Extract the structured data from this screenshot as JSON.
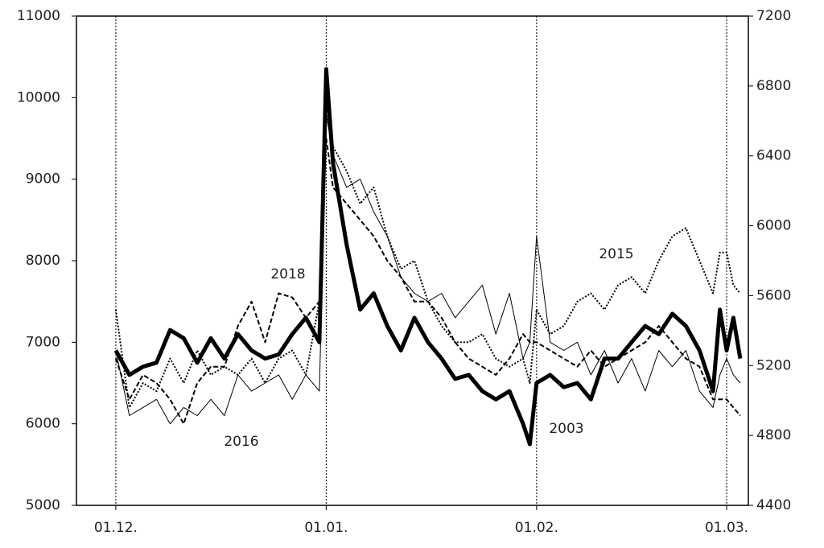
{
  "chart_data": {
    "type": "line",
    "x": [
      0,
      2,
      4,
      6,
      8,
      10,
      12,
      14,
      16,
      18,
      20,
      22,
      24,
      26,
      28,
      30,
      31,
      32,
      34,
      36,
      38,
      40,
      42,
      44,
      46,
      48,
      50,
      52,
      54,
      56,
      58,
      60,
      61,
      62,
      64,
      66,
      68,
      70,
      72,
      74,
      76,
      78,
      80,
      82,
      84,
      86,
      88,
      89,
      90,
      91,
      92
    ],
    "xlim": [
      -5.8,
      93.2
    ],
    "xticks": [
      {
        "value": 0,
        "label": "01.12."
      },
      {
        "value": 31,
        "label": "01.01."
      },
      {
        "value": 62,
        "label": "01.02."
      },
      {
        "value": 90,
        "label": "01.03."
      }
    ],
    "ylim": [
      5000,
      11000
    ],
    "yticks": [
      5000,
      6000,
      7000,
      8000,
      9000,
      10000,
      11000
    ],
    "y2lim": [
      4400,
      7200
    ],
    "y2ticks": [
      4400,
      4800,
      5200,
      5600,
      6000,
      6400,
      6800,
      7200
    ],
    "grid": "vertical-dotted",
    "series": [
      {
        "name": "2003",
        "color": "#000000",
        "style": "thick",
        "values": [
          6900,
          6600,
          6700,
          6750,
          7150,
          7050,
          6750,
          7050,
          6800,
          7100,
          6900,
          6800,
          6850,
          7100,
          7300,
          7000,
          10350,
          9200,
          8200,
          7400,
          7600,
          7200,
          6900,
          7300,
          7000,
          6800,
          6550,
          6600,
          6400,
          6300,
          6400,
          6000,
          5750,
          6500,
          6600,
          6450,
          6500,
          6300,
          6800,
          6800,
          7000,
          7200,
          7100,
          7350,
          7200,
          6900,
          6400,
          7400,
          6900,
          7300,
          6800
        ]
      },
      {
        "name": "2015",
        "color": "#000000",
        "style": "dotted-markers",
        "values": [
          7400,
          6200,
          6500,
          6400,
          6800,
          6500,
          6900,
          6600,
          6700,
          6600,
          6800,
          6500,
          6800,
          6900,
          6600,
          7500,
          9800,
          9400,
          9100,
          8700,
          8900,
          8300,
          7900,
          8000,
          7500,
          7200,
          7000,
          7000,
          7100,
          6800,
          6700,
          6800,
          6500,
          7400,
          7100,
          7200,
          7500,
          7600,
          7400,
          7700,
          7800,
          7600,
          8000,
          8300,
          8400,
          8000,
          7600,
          8100,
          8100,
          7700,
          7600
        ]
      },
      {
        "name": "2018",
        "color": "#000000",
        "style": "dashed",
        "values": [
          6800,
          6300,
          6600,
          6500,
          6300,
          6000,
          6500,
          6700,
          6700,
          7200,
          7500,
          7000,
          7600,
          7550,
          7300,
          7500,
          9500,
          8900,
          8700,
          8500,
          8300,
          8000,
          7800,
          7500,
          7500,
          7300,
          7000,
          6800,
          6700,
          6600,
          6800,
          7100,
          7000,
          7000,
          6900,
          6800,
          6700,
          6900,
          6700,
          6800,
          6900,
          7000,
          7200,
          7000,
          6800,
          6700,
          6300,
          6300,
          6300,
          6200,
          6100
        ]
      },
      {
        "name": "2016",
        "color": "#000000",
        "style": "thin",
        "values": [
          6900,
          6100,
          6200,
          6300,
          6000,
          6200,
          6100,
          6300,
          6100,
          6600,
          6400,
          6500,
          6600,
          6300,
          6600,
          6400,
          9800,
          9300,
          8900,
          9000,
          8600,
          8300,
          7800,
          7600,
          7500,
          7600,
          7300,
          7500,
          7700,
          7100,
          7600,
          6800,
          7000,
          8300,
          7000,
          6900,
          7000,
          6600,
          6900,
          6500,
          6800,
          6400,
          6900,
          6700,
          6900,
          6400,
          6200,
          6600,
          6800,
          6600,
          6500
        ]
      }
    ]
  }
}
